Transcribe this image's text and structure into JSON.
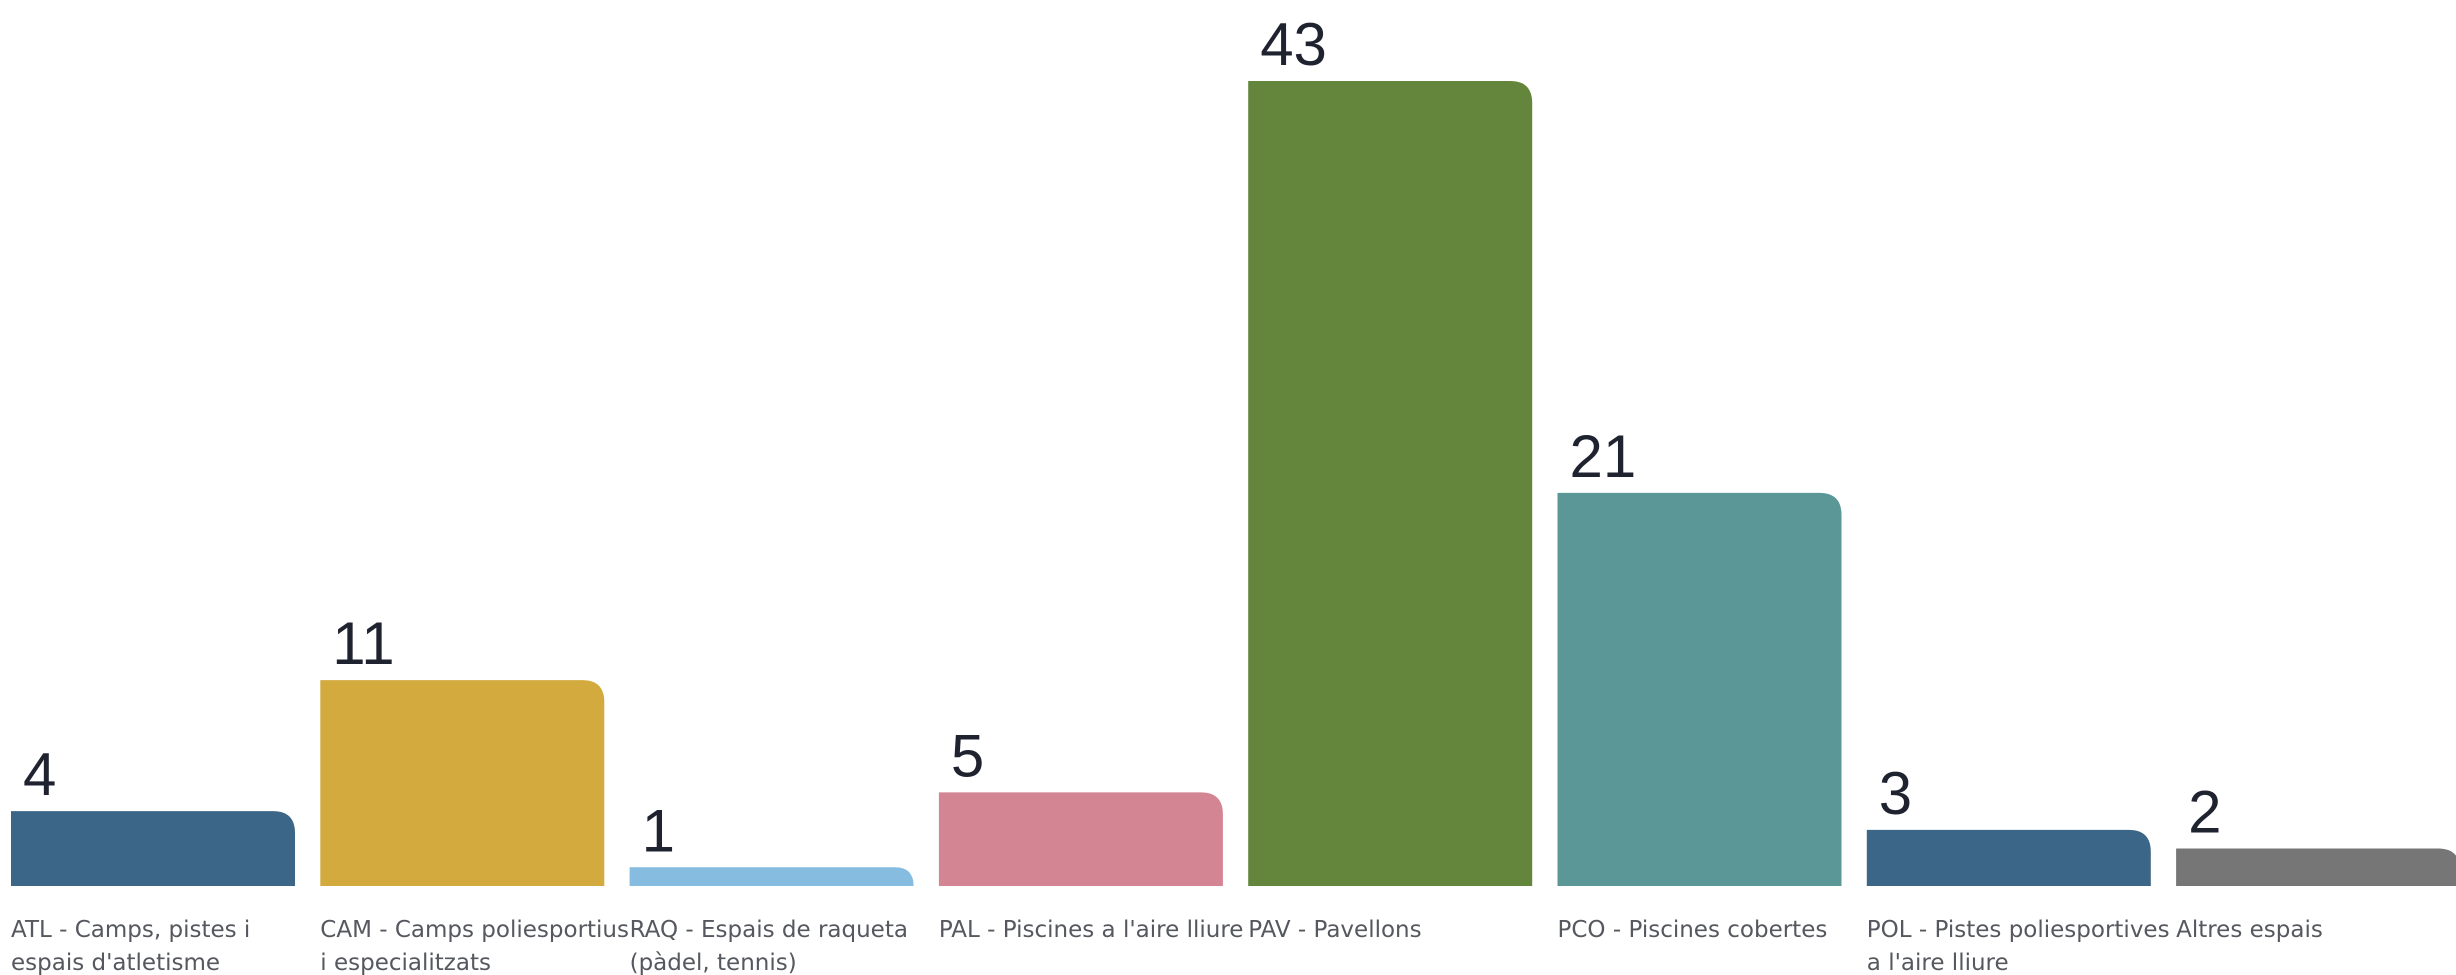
{
  "chart_data": {
    "type": "bar",
    "title": "",
    "xlabel": "",
    "ylabel": "",
    "categories": [
      [
        "ATL - Camps, pistes i",
        "espais d'atletisme"
      ],
      [
        "CAM - Camps poliesportius",
        "i especialitzats"
      ],
      [
        "RAQ - Espais de raqueta",
        "(pàdel, tennis)"
      ],
      [
        "PAL - Piscines a l'aire lliure"
      ],
      [
        "PAV - Pavellons"
      ],
      [
        "PCO - Piscines cobertes"
      ],
      [
        "POL - Pistes poliesportives",
        "a l'aire lliure"
      ],
      [
        "Altres espais"
      ]
    ],
    "values": [
      4,
      11,
      1,
      5,
      43,
      21,
      3,
      2
    ],
    "colors": [
      "#3b6687",
      "#d3aa3e",
      "#86bcdf",
      "#d38593",
      "#64863c",
      "#5a9796",
      "#3b6687",
      "#767676"
    ],
    "ylim": [
      0,
      43
    ],
    "grid": false,
    "legend": "none"
  }
}
